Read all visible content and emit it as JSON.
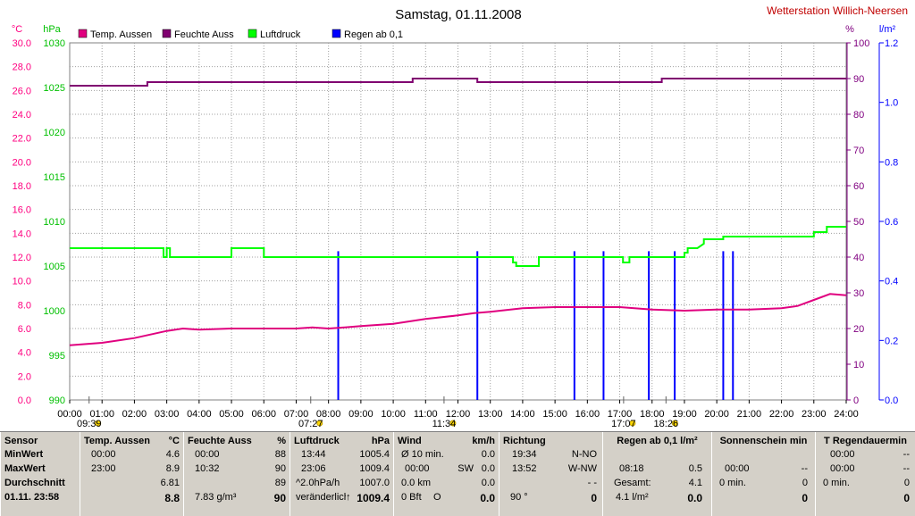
{
  "header": {
    "title": "Samstag, 01.11.2008",
    "station": "Wetterstation Willich-Neersen"
  },
  "chart_data": {
    "type": "line",
    "title": "Samstag, 01.11.2008",
    "x_ticks": [
      "00:00",
      "01:00",
      "02:00",
      "03:00",
      "04:00",
      "05:00",
      "06:00",
      "07:00",
      "08:00",
      "09:00",
      "10:00",
      "11:00",
      "12:00",
      "13:00",
      "14:00",
      "15:00",
      "16:00",
      "17:00",
      "18:00",
      "19:00",
      "20:00",
      "21:00",
      "22:00",
      "23:00",
      "24:00"
    ],
    "axes": {
      "temp": {
        "unit": "°C",
        "min": 0,
        "max": 30,
        "ticks": [
          "0.0",
          "2.0",
          "4.0",
          "6.0",
          "8.0",
          "10.0",
          "12.0",
          "14.0",
          "16.0",
          "18.0",
          "20.0",
          "22.0",
          "24.0",
          "26.0",
          "28.0",
          "30.0"
        ],
        "color": "#ff0080"
      },
      "pressure": {
        "unit": "hPa",
        "min": 990,
        "max": 1030,
        "ticks": [
          "990",
          "995",
          "1000",
          "1005",
          "1010",
          "1015",
          "1020",
          "1025",
          "1030"
        ],
        "color": "#00c000"
      },
      "humidity": {
        "unit": "%",
        "min": 0,
        "max": 100,
        "ticks": [
          "0",
          "10",
          "20",
          "30",
          "40",
          "50",
          "60",
          "70",
          "80",
          "90",
          "100"
        ],
        "color": "#800080"
      },
      "rain": {
        "unit": "l/m²",
        "min": 0,
        "max": 1.2,
        "ticks": [
          "0.0",
          "0.2",
          "0.4",
          "0.6",
          "0.8",
          "1.0",
          "1.2"
        ],
        "color": "#0000ff"
      }
    },
    "legend": [
      {
        "name": "Temp. Aussen",
        "color": "#e0007f"
      },
      {
        "name": "Feuchte Auss",
        "color": "#800070"
      },
      {
        "name": "Luftdruck",
        "color": "#00ff00"
      },
      {
        "name": "Regen ab 0,1",
        "color": "#0000ff"
      }
    ],
    "series": [
      {
        "name": "Temp. Aussen",
        "axis": "temp",
        "color": "#e0007f",
        "x": [
          0,
          1,
          2,
          2.5,
          3,
          3.5,
          4,
          5,
          6,
          7,
          7.5,
          8,
          8.5,
          9,
          10,
          11,
          12,
          12.5,
          13,
          14,
          15,
          16,
          17,
          18,
          19,
          20,
          21,
          22,
          22.5,
          23,
          23.5,
          24
        ],
        "y": [
          4.6,
          4.8,
          5.2,
          5.5,
          5.8,
          6.0,
          5.9,
          6.0,
          6.0,
          6.0,
          6.1,
          6.0,
          6.1,
          6.2,
          6.4,
          6.8,
          7.1,
          7.3,
          7.4,
          7.7,
          7.8,
          7.8,
          7.8,
          7.6,
          7.5,
          7.6,
          7.6,
          7.7,
          7.9,
          8.4,
          8.9,
          8.8
        ]
      },
      {
        "name": "Feuchte Auss",
        "axis": "humidity",
        "color": "#800070",
        "x": [
          0,
          2.4,
          2.4,
          10.6,
          10.6,
          12.6,
          12.6,
          18.3,
          18.3,
          24
        ],
        "y": [
          88,
          88,
          89,
          89,
          90,
          90,
          89,
          89,
          90,
          90
        ]
      },
      {
        "name": "Luftdruck",
        "axis": "pressure",
        "color": "#00ff00",
        "x": [
          0,
          2.9,
          2.9,
          3.0,
          3.0,
          3.1,
          3.1,
          5.0,
          5.0,
          6.0,
          6.0,
          13.7,
          13.7,
          13.8,
          13.8,
          14.5,
          14.5,
          16.5,
          16.5,
          17.1,
          17.1,
          17.3,
          17.3,
          19.0,
          19.0,
          19.1,
          19.1,
          19.4,
          19.4,
          19.6,
          19.6,
          20.2,
          20.2,
          23.0,
          23.0,
          23.4,
          23.4,
          24
        ],
        "y": [
          1007.0,
          1007.0,
          1006.0,
          1006.0,
          1007.0,
          1007.0,
          1006.0,
          1006.0,
          1007.0,
          1007.0,
          1006.0,
          1006.0,
          1005.4,
          1005.4,
          1005.0,
          1005.0,
          1006.0,
          1006.0,
          1006.0,
          1006.0,
          1005.4,
          1005.4,
          1006.0,
          1006.0,
          1006.5,
          1006.5,
          1007.0,
          1007.0,
          1007.0,
          1007.5,
          1008.0,
          1008.0,
          1008.3,
          1008.3,
          1008.8,
          1008.8,
          1009.4,
          1009.4
        ]
      }
    ],
    "rain_bars": {
      "x": [
        8.3,
        12.6,
        15.6,
        16.5,
        17.9,
        18.7,
        20.2,
        20.5
      ],
      "y": [
        0.5,
        0.5,
        0.5,
        0.5,
        0.5,
        0.5,
        0.5,
        0.5
      ]
    },
    "time_markers": [
      {
        "label": "09:39",
        "x": 0.6
      },
      {
        "label": "07:27",
        "x": 7.45
      },
      {
        "label": "11:34",
        "x": 11.57
      },
      {
        "label": "17:07",
        "x": 17.12
      },
      {
        "label": "18:26",
        "x": 18.43
      }
    ]
  },
  "panel": {
    "sensor": {
      "title": "Sensor",
      "r1": "MinWert",
      "r2": "MaxWert",
      "r3": "Durchschnitt",
      "r4": "01.11. 23:58"
    },
    "temp": {
      "title": "Temp. Aussen",
      "unit": "°C",
      "r1a": "00:00",
      "r1b": "4.6",
      "r2a": "23:00",
      "r2b": "8.9",
      "r3b": "6.81",
      "r4b": "8.8"
    },
    "humidity": {
      "title": "Feuchte Auss",
      "unit": "%",
      "r1a": "00:00",
      "r1b": "88",
      "r2a": "10:32",
      "r2b": "90",
      "r3b": "89",
      "r4a": "7.83 g/m³",
      "r4b": "90"
    },
    "pressure": {
      "title": "Luftdruck",
      "unit": "hPa",
      "r1a": "13:44",
      "r1b": "1005.4",
      "r2a": "23:06",
      "r2b": "1009.4",
      "r3a": "^2.0hPa/h",
      "r3b": "1007.0",
      "r4a": "veränderlich",
      "r4b": "1009.4"
    },
    "wind": {
      "title": "Wind",
      "unit": "km/h",
      "r1a": "Ø 10 min.",
      "r1b": "0.0",
      "r2a": "00:00",
      "r2m": "SW",
      "r2b": "0.0",
      "r3a": "0.0 km",
      "r3b": "0.0",
      "r4a": "0 Bft",
      "r4m": "O",
      "r4b": "0.0"
    },
    "direction": {
      "title": "Richtung",
      "r1a": "19:34",
      "r1b": "N-NO",
      "r2a": "13:52",
      "r2b": "W-NW",
      "r3b": "- -",
      "r4a": "90 °",
      "r4b": "0"
    },
    "rain": {
      "title": "Regen ab 0,1 l/m²",
      "r2a": "08:18",
      "r2b": "0.5",
      "r3a": "Gesamt:",
      "r3b": "4.1",
      "r4a": "4.1 l/m²",
      "r4b": "0.0"
    },
    "sun": {
      "title": "Sonnenschein min",
      "r2a": "00:00",
      "r2b": "--",
      "r3a": "0 min.",
      "r3b": "0",
      "r4b": "0"
    },
    "rainduration": {
      "title": "T Regendauermin",
      "r1a": "00:00",
      "r1b": "--",
      "r2a": "00:00",
      "r2b": "--",
      "r3a": "0 min.",
      "r3b": "0",
      "r4b": "0"
    }
  }
}
